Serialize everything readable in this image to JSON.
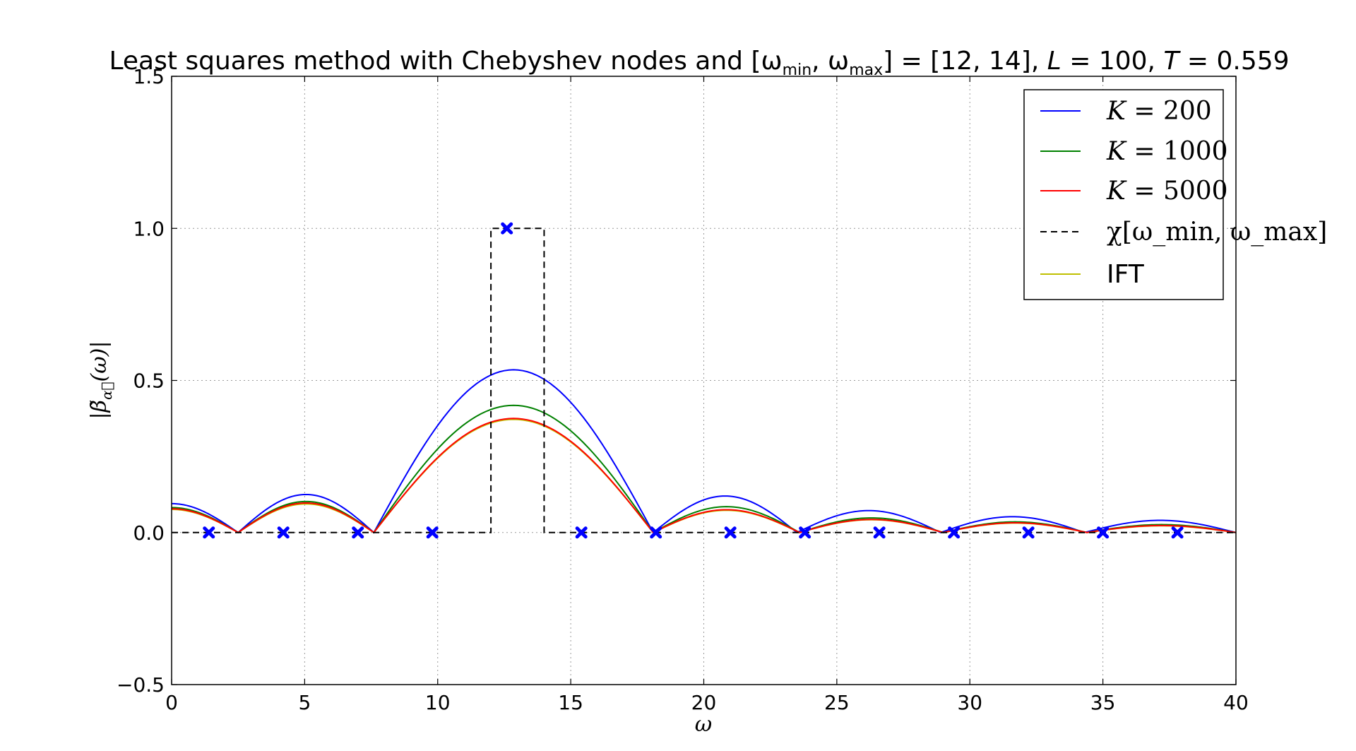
{
  "chart_data": {
    "type": "line",
    "title": "Least squares method with Chebyshev nodes and [ω_min, ω_max] = [12, 14], L = 100, T = 0.559",
    "xlabel": "ω",
    "ylabel": "|β̃_α⃗(ω)|",
    "xlim": [
      0,
      40
    ],
    "ylim": [
      -0.5,
      1.5
    ],
    "xticks": [
      "0",
      "5",
      "10",
      "15",
      "20",
      "25",
      "30",
      "35",
      "40"
    ],
    "yticks": [
      "−0.5",
      "0.0",
      "0.5",
      "1.0",
      "1.5"
    ],
    "grid": true,
    "legend_position": "top-right",
    "series": [
      {
        "name": "K = 200",
        "color": "#0000ff",
        "lobes": [
          {
            "x0": 0,
            "x1": 2.5,
            "peak_x": 0,
            "peak": 0.095,
            "start": 0.095
          },
          {
            "x0": 2.5,
            "x1": 7.6,
            "peak": 0.125
          },
          {
            "x0": 7.6,
            "x1": 18.1,
            "peak": 0.535
          },
          {
            "x0": 18.1,
            "x1": 23.5,
            "peak": 0.12
          },
          {
            "x0": 23.5,
            "x1": 28.9,
            "peak": 0.072
          },
          {
            "x0": 28.9,
            "x1": 34.3,
            "peak": 0.052
          },
          {
            "x0": 34.3,
            "x1": 40.0,
            "peak": 0.04
          }
        ]
      },
      {
        "name": "K = 1000",
        "color": "#008000",
        "lobes": [
          {
            "x0": 0,
            "x1": 2.5,
            "peak_x": 0,
            "peak": 0.082,
            "start": 0.082
          },
          {
            "x0": 2.5,
            "x1": 7.6,
            "peak": 0.102
          },
          {
            "x0": 7.6,
            "x1": 18.1,
            "peak": 0.418
          },
          {
            "x0": 18.1,
            "x1": 23.6,
            "peak": 0.085
          },
          {
            "x0": 23.6,
            "x1": 29.0,
            "peak": 0.048
          },
          {
            "x0": 29.0,
            "x1": 34.4,
            "peak": 0.035
          },
          {
            "x0": 34.4,
            "x1": 40.0,
            "peak": 0.026
          }
        ]
      },
      {
        "name": "K = 5000",
        "color": "#ff0000",
        "lobes": [
          {
            "x0": 0,
            "x1": 2.5,
            "peak_x": 0,
            "peak": 0.078,
            "start": 0.078
          },
          {
            "x0": 2.5,
            "x1": 7.6,
            "peak": 0.097
          },
          {
            "x0": 7.6,
            "x1": 18.1,
            "peak": 0.375
          },
          {
            "x0": 18.1,
            "x1": 23.6,
            "peak": 0.075
          },
          {
            "x0": 23.6,
            "x1": 29.0,
            "peak": 0.043
          },
          {
            "x0": 29.0,
            "x1": 34.4,
            "peak": 0.032
          },
          {
            "x0": 34.4,
            "x1": 40.0,
            "peak": 0.023
          }
        ]
      },
      {
        "name": "χ[ω_min, ω_max]",
        "color": "#000000",
        "dashed": true,
        "x": [
          0,
          12,
          12,
          14,
          14,
          40
        ],
        "y": [
          0,
          0,
          1,
          1,
          0,
          0
        ]
      },
      {
        "name": "IFT",
        "color": "#bfbf00",
        "lobes": [
          {
            "x0": 0,
            "x1": 2.5,
            "peak_x": 0,
            "peak": 0.076,
            "start": 0.076
          },
          {
            "x0": 2.5,
            "x1": 7.6,
            "peak": 0.094
          },
          {
            "x0": 7.6,
            "x1": 18.1,
            "peak": 0.372
          },
          {
            "x0": 18.1,
            "x1": 23.6,
            "peak": 0.073
          },
          {
            "x0": 23.6,
            "x1": 29.0,
            "peak": 0.042
          },
          {
            "x0": 29.0,
            "x1": 34.4,
            "peak": 0.031
          },
          {
            "x0": 34.4,
            "x1": 40.0,
            "peak": 0.022
          }
        ]
      }
    ],
    "markers": {
      "color": "#0000ff",
      "symbol": "x",
      "points": [
        {
          "x": 1.4,
          "y": 0
        },
        {
          "x": 4.2,
          "y": 0
        },
        {
          "x": 7.0,
          "y": 0
        },
        {
          "x": 9.8,
          "y": 0
        },
        {
          "x": 12.6,
          "y": 1.0
        },
        {
          "x": 15.4,
          "y": 0
        },
        {
          "x": 18.2,
          "y": 0
        },
        {
          "x": 21.0,
          "y": 0
        },
        {
          "x": 23.8,
          "y": 0
        },
        {
          "x": 26.6,
          "y": 0
        },
        {
          "x": 29.4,
          "y": 0
        },
        {
          "x": 32.2,
          "y": 0
        },
        {
          "x": 35.0,
          "y": 0
        },
        {
          "x": 37.8,
          "y": 0
        }
      ]
    }
  }
}
